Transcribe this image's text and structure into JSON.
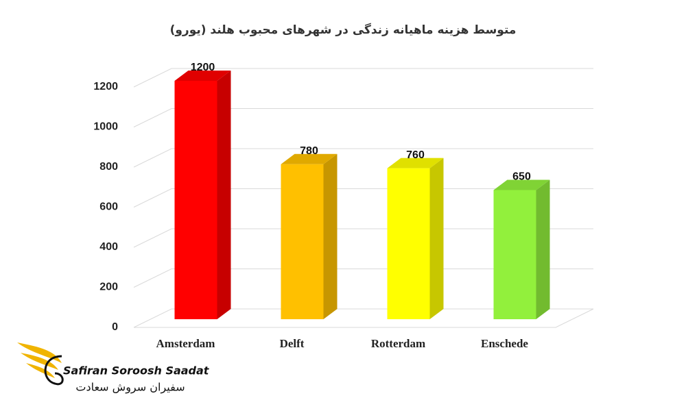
{
  "chart_data": {
    "type": "bar3d",
    "title": "متوسط هزینه ماهیانه زندگی در شهرهای محبوب هلند (یورو)",
    "categories": [
      "Amsterdam",
      "Delft",
      "Rotterdam",
      "Enschede"
    ],
    "values": [
      1200,
      780,
      760,
      650
    ],
    "colors": [
      "#ff0000",
      "#ffc000",
      "#ffff00",
      "#92f03c"
    ],
    "ylim": [
      0,
      1200
    ],
    "yticks": [
      0,
      200,
      400,
      600,
      800,
      1000,
      1200
    ],
    "grid": true
  },
  "logo": {
    "name": "Safiran Soroosh Saadat",
    "name_fa": "سفیران سروش سعادت"
  }
}
